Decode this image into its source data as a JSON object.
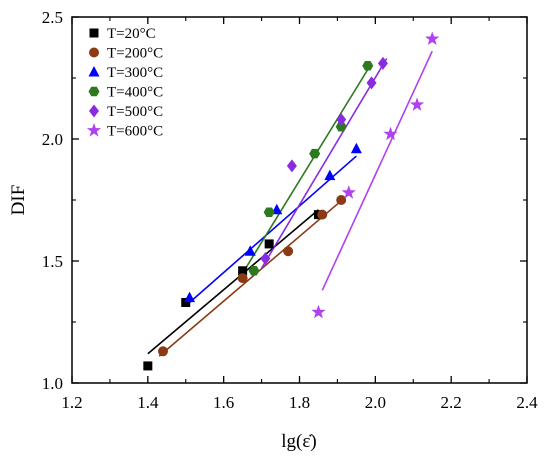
{
  "chart_data": {
    "type": "scatter",
    "xlabel": "lg(ε̇)",
    "ylabel": "DIF",
    "xlim": [
      1.2,
      2.4
    ],
    "ylim": [
      1.0,
      2.5
    ],
    "xticks": [
      1.2,
      1.4,
      1.6,
      1.8,
      2.0,
      2.2,
      2.4
    ],
    "yticks": [
      1.0,
      1.5,
      2.0,
      2.5
    ],
    "xtick_labels": [
      "1.2",
      "1.4",
      "1.6",
      "1.8",
      "2.0",
      "2.2",
      "2.4"
    ],
    "ytick_labels": [
      "1.0",
      "1.5",
      "2.0",
      "2.5"
    ],
    "legend_position": "top-left",
    "grid": false,
    "series": [
      {
        "name": "T=20°C",
        "marker": "square",
        "color": "#000000",
        "points": [
          [
            1.4,
            1.07
          ],
          [
            1.5,
            1.33
          ],
          [
            1.65,
            1.46
          ],
          [
            1.72,
            1.57
          ],
          [
            1.85,
            1.69
          ]
        ],
        "fit": [
          [
            1.4,
            1.12
          ],
          [
            1.85,
            1.71
          ]
        ]
      },
      {
        "name": "T=200°C",
        "marker": "circle",
        "color": "#8b3a14",
        "points": [
          [
            1.44,
            1.13
          ],
          [
            1.65,
            1.43
          ],
          [
            1.77,
            1.54
          ],
          [
            1.86,
            1.69
          ],
          [
            1.91,
            1.75
          ]
        ],
        "fit": [
          [
            1.43,
            1.11
          ],
          [
            1.92,
            1.76
          ]
        ]
      },
      {
        "name": "T=300°C",
        "marker": "triangle",
        "color": "#0000ff",
        "points": [
          [
            1.51,
            1.35
          ],
          [
            1.67,
            1.54
          ],
          [
            1.74,
            1.71
          ],
          [
            1.88,
            1.85
          ],
          [
            1.95,
            1.96
          ]
        ],
        "fit": [
          [
            1.51,
            1.33
          ],
          [
            1.95,
            1.93
          ]
        ]
      },
      {
        "name": "T=400°C",
        "marker": "hexagon",
        "color": "#2d7a1e",
        "points": [
          [
            1.68,
            1.46
          ],
          [
            1.72,
            1.7
          ],
          [
            1.84,
            1.94
          ],
          [
            1.91,
            2.05
          ],
          [
            1.98,
            2.3
          ]
        ],
        "fit": [
          [
            1.65,
            1.45
          ],
          [
            1.99,
            2.31
          ]
        ]
      },
      {
        "name": "T=500°C",
        "marker": "diamond",
        "color": "#8a2be2",
        "points": [
          [
            1.71,
            1.51
          ],
          [
            1.78,
            1.89
          ],
          [
            1.91,
            2.08
          ],
          [
            1.99,
            2.23
          ],
          [
            2.02,
            2.31
          ]
        ],
        "fit": [
          [
            1.7,
            1.47
          ],
          [
            2.03,
            2.33
          ]
        ]
      },
      {
        "name": "T=600°C",
        "marker": "star",
        "color": "#b040f0",
        "points": [
          [
            1.85,
            1.29
          ],
          [
            1.93,
            1.78
          ],
          [
            2.04,
            2.02
          ],
          [
            2.11,
            2.14
          ],
          [
            2.15,
            2.41
          ]
        ],
        "fit": [
          [
            1.86,
            1.38
          ],
          [
            2.15,
            2.36
          ]
        ]
      }
    ]
  }
}
